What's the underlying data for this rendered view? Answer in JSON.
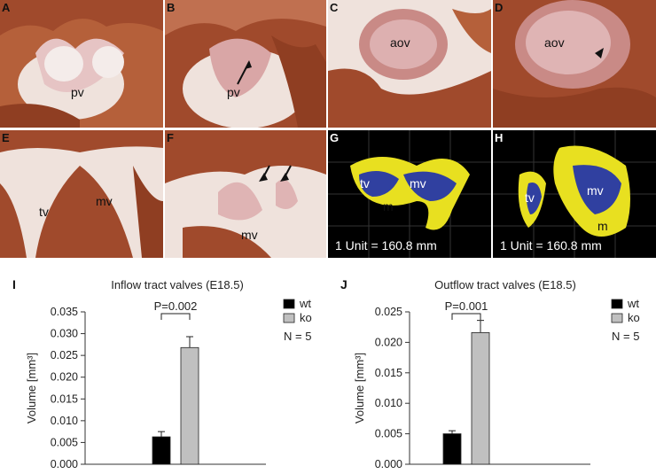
{
  "panels": [
    {
      "label": "A",
      "annotations": [
        "pv"
      ]
    },
    {
      "label": "B",
      "annotations": [
        "pv"
      ]
    },
    {
      "label": "C",
      "annotations": [
        "aov"
      ]
    },
    {
      "label": "D",
      "annotations": [
        "aov"
      ]
    },
    {
      "label": "E",
      "annotations": [
        "tv",
        "mv"
      ]
    },
    {
      "label": "F",
      "annotations": [
        "mv"
      ]
    },
    {
      "label": "G",
      "annotations": [
        "tv",
        "mv",
        "m"
      ],
      "unit_text": "1 Unit = 160.8  mm"
    },
    {
      "label": "H",
      "annotations": [
        "tv",
        "mv",
        "m"
      ],
      "unit_text": "1 Unit = 160.8  mm"
    }
  ],
  "colors": {
    "wt": "#000000",
    "ko": "#c0c0c0",
    "tissue": "#a04a2c",
    "valve": "#e8c8c8",
    "render_bg": "#000000",
    "render_blue": "#3040a0",
    "render_yellow": "#e8e020"
  },
  "chart_data": [
    {
      "panel_label": "I",
      "type": "bar",
      "title": "Inflow tract valves (E18.5)",
      "ylabel": "Volume [mm³]",
      "ylim": [
        0,
        0.035
      ],
      "yticks": [
        "0.000",
        "0.005",
        "0.010",
        "0.015",
        "0.020",
        "0.025",
        "0.030",
        "0.035"
      ],
      "tickvals": [
        0,
        0.005,
        0.01,
        0.015,
        0.02,
        0.025,
        0.03,
        0.035
      ],
      "series": [
        {
          "name": "wt",
          "value": 0.0063,
          "error": 0.0012
        },
        {
          "name": "ko",
          "value": 0.0268,
          "error": 0.0025
        }
      ],
      "annotation": "P=0.002",
      "n_text": "N = 5"
    },
    {
      "panel_label": "J",
      "type": "bar",
      "title": "Outflow tract valves (E18.5)",
      "ylabel": "Volume [mm³]",
      "ylim": [
        0,
        0.025
      ],
      "yticks": [
        "0.000",
        "0.005",
        "0.010",
        "0.015",
        "0.020",
        "0.025"
      ],
      "tickvals": [
        0,
        0.005,
        0.01,
        0.015,
        0.02,
        0.025
      ],
      "series": [
        {
          "name": "wt",
          "value": 0.005,
          "error": 0.0005
        },
        {
          "name": "ko",
          "value": 0.0216,
          "error": 0.002
        }
      ],
      "annotation": "P=0.001",
      "n_text": "N = 5"
    }
  ]
}
